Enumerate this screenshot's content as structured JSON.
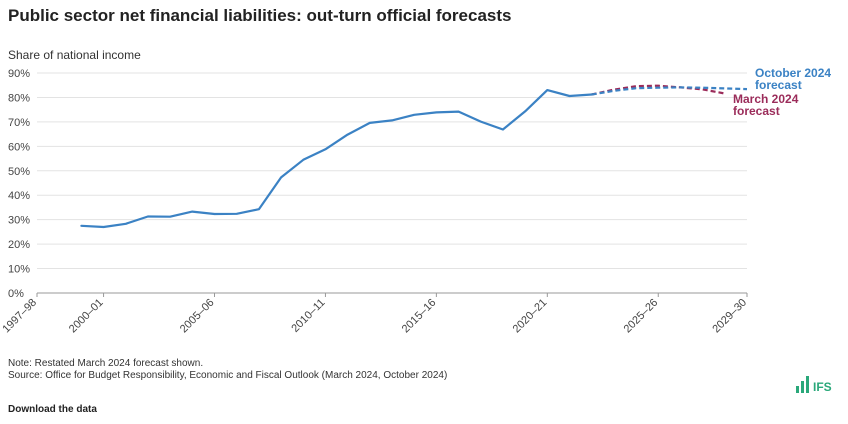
{
  "chart_data": {
    "type": "line",
    "title": "Public sector net financial liabilities: out-turn official forecasts",
    "ylabel": "Share of national income",
    "ylim": [
      0,
      90
    ],
    "yticks": [
      "0%",
      "10%",
      "20%",
      "30%",
      "40%",
      "50%",
      "60%",
      "70%",
      "80%",
      "90%"
    ],
    "ytick_values": [
      0,
      10,
      20,
      30,
      40,
      50,
      60,
      70,
      80,
      90
    ],
    "x_start_year": 1997,
    "x_end_year": 2029,
    "xtick_labels": [
      "1997–98",
      "2000–01",
      "2005–06",
      "2010–11",
      "2015–16",
      "2020–21",
      "2025–26",
      "2029–30"
    ],
    "xtick_years": [
      1997,
      2000,
      2005,
      2010,
      2015,
      2020,
      2025,
      2029
    ],
    "series": [
      {
        "name": "Out-turn",
        "style": "solid",
        "color": "#3b82c4",
        "x": [
          1999,
          2000,
          2001,
          2002,
          2003,
          2004,
          2005,
          2006,
          2007,
          2008,
          2009,
          2010,
          2011,
          2012,
          2013,
          2014,
          2015,
          2016,
          2017,
          2018,
          2019,
          2020,
          2021,
          2022
        ],
        "values": [
          27.5,
          27.0,
          28.3,
          31.3,
          31.2,
          33.3,
          32.3,
          32.4,
          34.3,
          47.3,
          54.5,
          58.8,
          64.8,
          69.6,
          70.6,
          72.9,
          73.9,
          74.2,
          70.1,
          66.9,
          74.3,
          83.0,
          80.6,
          81.2
        ]
      },
      {
        "name": "October 2024 forecast",
        "label_lines": [
          "October 2024",
          "forecast"
        ],
        "style": "dashed",
        "color": "#3b82c4",
        "x": [
          2022,
          2023,
          2024,
          2025,
          2026,
          2027,
          2028,
          2029
        ],
        "values": [
          81.2,
          82.7,
          83.8,
          84.0,
          84.1,
          84.0,
          83.7,
          83.4
        ]
      },
      {
        "name": "March 2024 forecast",
        "label_lines": [
          "March 2024",
          "forecast"
        ],
        "style": "dashed",
        "color": "#9b2c5a",
        "x": [
          2022,
          2023,
          2024,
          2025,
          2026,
          2027,
          2028
        ],
        "values": [
          81.2,
          83.2,
          84.6,
          84.8,
          84.1,
          83.3,
          81.6
        ]
      }
    ]
  },
  "notes": {
    "note": "Note: Restated March 2024 forecast shown.",
    "source": "Source: Office for Budget Responsibility, Economic and Fiscal Outlook (March 2024, October 2024)"
  },
  "footer": {
    "download_label": "Download the data",
    "logo_text": "IFS"
  },
  "colors": {
    "october": "#3b82c4",
    "march": "#9b2c5a",
    "grid": "#e3e3e3",
    "logo": "#2aa87a"
  }
}
